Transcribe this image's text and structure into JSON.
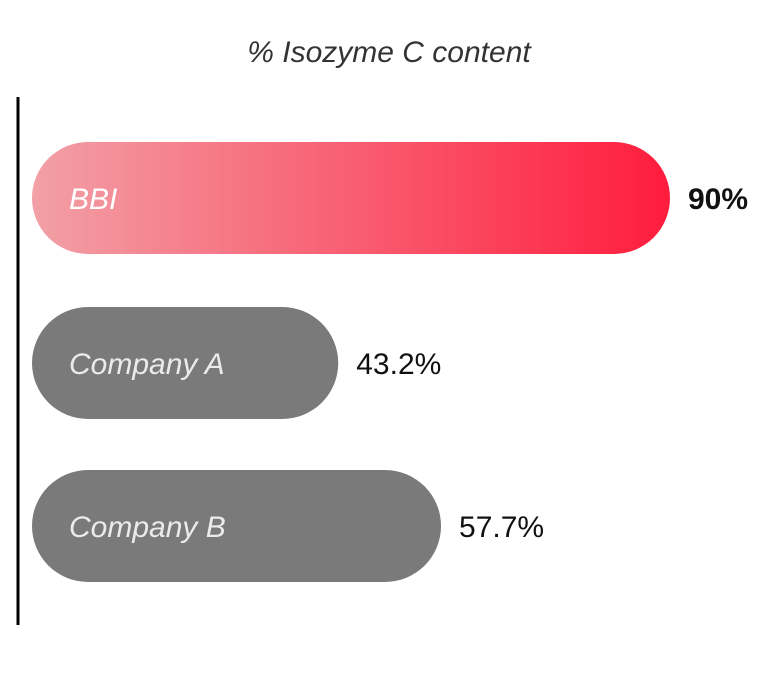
{
  "chart_data": {
    "type": "bar",
    "orientation": "horizontal",
    "title": "% Isozyme C content",
    "categories": [
      "BBI",
      "Company A",
      "Company B"
    ],
    "values": [
      90,
      43.2,
      57.7
    ],
    "value_labels": [
      "90%",
      "43.2%",
      "57.7%"
    ],
    "xlabel": "",
    "ylabel": "",
    "xlim": [
      0,
      90
    ],
    "grid": false,
    "legend": "none",
    "colors": {
      "highlight_start": "#f2a0a6",
      "highlight_end": "#ff1c3d",
      "bar": "#7b7a7a",
      "label_on_bar": "#ffffff",
      "title": "#333333",
      "value": "#111111",
      "axis": "#000000"
    }
  }
}
